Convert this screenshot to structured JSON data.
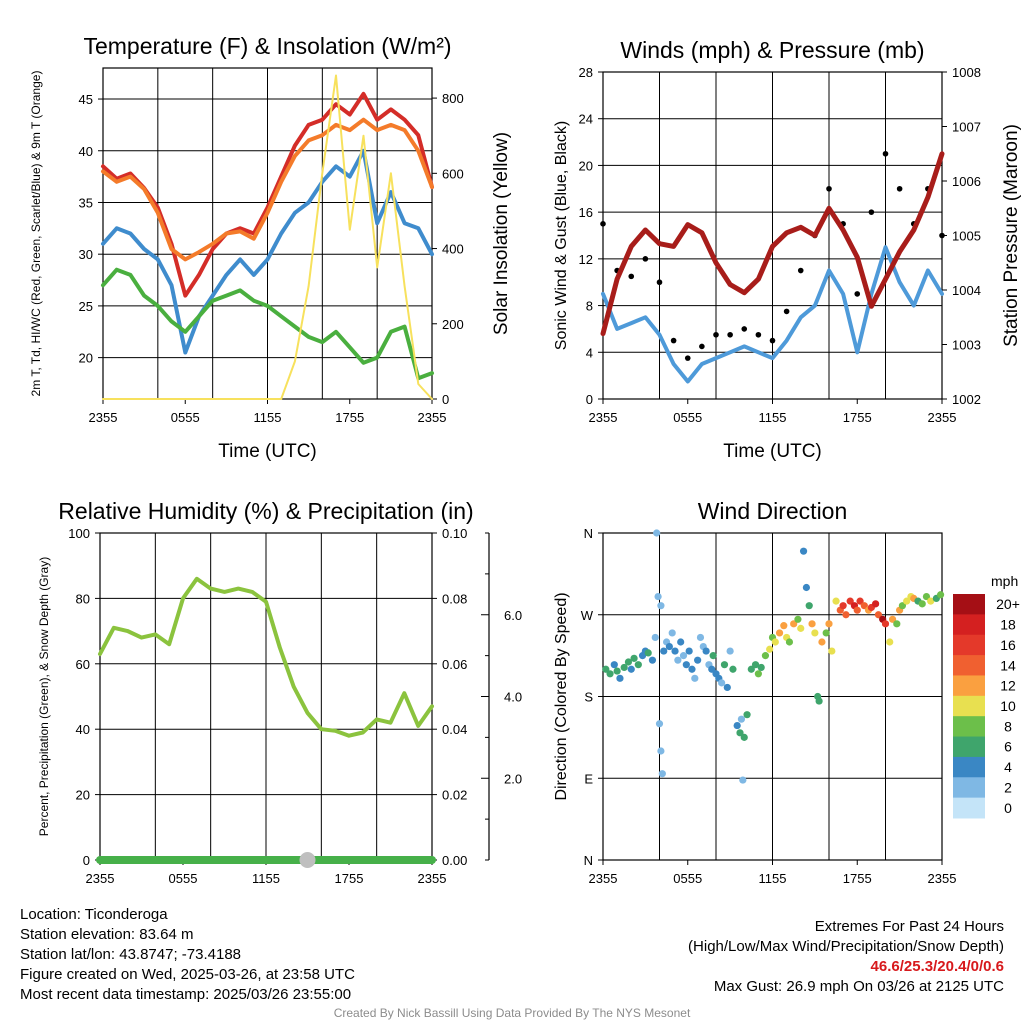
{
  "colors": {
    "temp_red": "#d42d28",
    "temp_orange": "#f47b2a",
    "temp_blue": "#3f8ccd",
    "temp_green": "#4aaf3f",
    "insolation": "#f7e15d",
    "wind": "#4e9ad9",
    "gust": "#000000",
    "pressure": "#a81d1a",
    "rh": "#8bc33e",
    "precip": "#46b049",
    "snow": "#bfbfbf",
    "extremes": "#d7191c",
    "credit": "#8c8c8c"
  },
  "chart_data": [
    {
      "id": "temperature",
      "type": "line",
      "title": "Temperature (F) & Insolation (W/m²)",
      "xlabel": "Time (UTC)",
      "ylabel_left": "2m T, Td, HI/WC (Red, Green, Scarlet/Blue) & 9m T (Orange)",
      "ylabel_right": "Solar Insolation (Yellow)",
      "x_ticks": [
        "2355",
        "0555",
        "1155",
        "1755",
        "2355"
      ],
      "ylim_left": [
        16,
        48
      ],
      "yticks_left": [
        20,
        25,
        30,
        35,
        40,
        45
      ],
      "ylim_right": [
        0,
        880
      ],
      "yticks_right": [
        0,
        200,
        400,
        600,
        800
      ],
      "x_hours": [
        0,
        1,
        2,
        3,
        4,
        5,
        6,
        7,
        8,
        9,
        10,
        11,
        12,
        13,
        14,
        15,
        16,
        17,
        18,
        19,
        20,
        21,
        22,
        23,
        24
      ],
      "series": [
        {
          "name": "Scarlet",
          "color_key": "temp_red",
          "axis": "left",
          "values": [
            38.5,
            37.3,
            37.8,
            36.4,
            34.5,
            31,
            26,
            28,
            30.5,
            32,
            32.5,
            32,
            34.5,
            37.5,
            40.5,
            42.5,
            43,
            44.5,
            43.5,
            45.5,
            43,
            44,
            43,
            41.5,
            36.5
          ]
        },
        {
          "name": "Orange",
          "color_key": "temp_orange",
          "axis": "left",
          "values": [
            38,
            37,
            37.5,
            36.3,
            34,
            30.5,
            29.5,
            30.2,
            31,
            32,
            32.2,
            31.5,
            34,
            37,
            39.5,
            41,
            41.5,
            42.5,
            42,
            43,
            42,
            42.5,
            42,
            40,
            36.5
          ]
        },
        {
          "name": "Blue",
          "color_key": "temp_blue",
          "axis": "left",
          "values": [
            31,
            32.5,
            32,
            30.5,
            29.5,
            27,
            20.5,
            24,
            26,
            28,
            29.5,
            28,
            29.5,
            32,
            34,
            35,
            37,
            38.5,
            37.5,
            40,
            33,
            36,
            33,
            32.5,
            30
          ]
        },
        {
          "name": "Green",
          "color_key": "temp_green",
          "axis": "left",
          "values": [
            27,
            28.5,
            28,
            26,
            25,
            23.5,
            22.5,
            24,
            25.5,
            26,
            26.5,
            25.5,
            25,
            24,
            23,
            22,
            21.5,
            22.5,
            21,
            19.5,
            20,
            22.5,
            23,
            18,
            18.5
          ]
        },
        {
          "name": "Yellow",
          "color_key": "insolation",
          "axis": "right",
          "values": [
            0,
            0,
            0,
            0,
            0,
            0,
            0,
            0,
            0,
            0,
            0,
            0,
            0,
            0,
            100,
            300,
            600,
            860,
            450,
            700,
            350,
            600,
            300,
            40,
            0
          ]
        }
      ]
    },
    {
      "id": "winds",
      "type": "line",
      "title": "Winds (mph) & Pressure (mb)",
      "xlabel": "Time (UTC)",
      "ylabel_left": "Sonic Wind & Gust (Blue, Black)",
      "ylabel_right": "Station Pressure (Maroon)",
      "x_ticks": [
        "2355",
        "0555",
        "1155",
        "1755",
        "2355"
      ],
      "ylim_left": [
        0,
        28
      ],
      "yticks_left": [
        0,
        4,
        8,
        12,
        16,
        20,
        24,
        28
      ],
      "ylim_right": [
        1002,
        1008
      ],
      "yticks_right": [
        1002,
        1003,
        1004,
        1005,
        1006,
        1007,
        1008
      ],
      "x_hours": [
        0,
        1,
        2,
        3,
        4,
        5,
        6,
        7,
        8,
        9,
        10,
        11,
        12,
        13,
        14,
        15,
        16,
        17,
        18,
        19,
        20,
        21,
        22,
        23,
        24
      ],
      "series": [
        {
          "name": "Sonic Wind",
          "color_key": "wind",
          "axis": "left",
          "values": [
            9,
            6,
            6.5,
            7,
            5.5,
            3,
            1.5,
            3,
            3.5,
            4,
            4.5,
            4,
            3.5,
            5,
            7,
            8,
            11,
            9,
            4,
            9,
            13,
            10,
            8,
            11,
            9
          ]
        },
        {
          "name": "Gust",
          "color_key": "gust",
          "axis": "left",
          "values": [
            15,
            11,
            10.5,
            12,
            10,
            5,
            3.5,
            4.5,
            5.5,
            5.5,
            6,
            5.5,
            5,
            7.5,
            11,
            14,
            18,
            15,
            9,
            16,
            21,
            18,
            15,
            18,
            14
          ]
        },
        {
          "name": "Station Pressure",
          "color_key": "pressure",
          "axis": "right",
          "values": [
            1003.2,
            1004.2,
            1004.8,
            1005.1,
            1004.85,
            1004.8,
            1005.2,
            1005.05,
            1004.5,
            1004.1,
            1003.95,
            1004.2,
            1004.8,
            1005.05,
            1005.15,
            1005.0,
            1005.5,
            1005.1,
            1004.6,
            1003.7,
            1004.2,
            1004.7,
            1005.1,
            1005.7,
            1006.5
          ]
        }
      ]
    },
    {
      "id": "humidity",
      "type": "line",
      "title": "Relative Humidity (%) & Precipitation (in)",
      "xlabel": "",
      "ylabel_left": "Percent, Precipitation (Green), & Snow Depth (Gray)",
      "x_ticks": [
        "2355",
        "0555",
        "1155",
        "1755",
        "2355"
      ],
      "ylim_left": [
        0,
        100
      ],
      "yticks_left": [
        0,
        20,
        40,
        60,
        80,
        100
      ],
      "ylim_right": [
        0,
        0.1
      ],
      "yticks_right": [
        0.0,
        0.02,
        0.04,
        0.06,
        0.08,
        0.1
      ],
      "ytick_labels_right": [
        "0.00",
        "0.02",
        "0.04",
        "0.06",
        "0.08",
        "0.10"
      ],
      "ylim_third": [
        0,
        8
      ],
      "yticks_third": [
        2,
        4,
        6
      ],
      "ytick_labels_third": [
        "2.0",
        "4.0",
        "6.0"
      ],
      "x_hours": [
        0,
        1,
        2,
        3,
        4,
        5,
        6,
        7,
        8,
        9,
        10,
        11,
        12,
        13,
        14,
        15,
        16,
        17,
        18,
        19,
        20,
        21,
        22,
        23,
        24
      ],
      "series": [
        {
          "name": "Relative Humidity",
          "color_key": "rh",
          "axis": "left",
          "values": [
            63,
            71,
            70,
            68,
            69,
            66,
            80,
            86,
            83,
            82,
            83,
            82,
            79,
            65,
            53,
            45,
            40,
            39.5,
            38,
            39,
            43,
            42,
            51,
            41,
            47
          ]
        },
        {
          "name": "Precipitation",
          "color_key": "precip",
          "axis": "right",
          "values": [
            0,
            0,
            0,
            0,
            0,
            0,
            0,
            0,
            0,
            0,
            0,
            0,
            0,
            0,
            0,
            0,
            0,
            0,
            0,
            0,
            0,
            0,
            0,
            0,
            0
          ]
        },
        {
          "name": "Snow Depth",
          "color_key": "snow",
          "axis": "third",
          "values": [
            0,
            0,
            0,
            0,
            0,
            0,
            0,
            0,
            0,
            0,
            0,
            0,
            0,
            0,
            0,
            0,
            0,
            0,
            0,
            0,
            0,
            0,
            0,
            0,
            0
          ]
        }
      ]
    },
    {
      "id": "direction",
      "type": "scatter",
      "title": "Wind Direction",
      "xlabel": "",
      "ylabel_left": "Direction (Colored By Speed)",
      "x_ticks": [
        "2355",
        "0555",
        "1155",
        "1755",
        "2355"
      ],
      "ylim_left": [
        0,
        360
      ],
      "yticks_left": [
        0,
        90,
        180,
        270,
        360
      ],
      "ytick_labels_left": [
        "N",
        "E",
        "S",
        "W",
        "N"
      ],
      "colorbar_label": "mph",
      "colorbar_ticks": [
        "20+",
        "18",
        "16",
        "14",
        "12",
        "10",
        "8",
        "6",
        "4",
        "2",
        "0"
      ],
      "colorbar_colors": [
        "#a50f15",
        "#d42020",
        "#e4392a",
        "#f06030",
        "#faa040",
        "#e8e050",
        "#6cbf4a",
        "#3fa56c",
        "#3a87c4",
        "#7fb8e4",
        "#c4e4f8"
      ],
      "points": [
        [
          0.2,
          210,
          6
        ],
        [
          0.5,
          205,
          7
        ],
        [
          0.8,
          215,
          5
        ],
        [
          1.0,
          208,
          6
        ],
        [
          1.2,
          200,
          4
        ],
        [
          1.5,
          212,
          7
        ],
        [
          1.8,
          218,
          6
        ],
        [
          2.0,
          210,
          5
        ],
        [
          2.2,
          222,
          6
        ],
        [
          2.5,
          215,
          7
        ],
        [
          2.8,
          225,
          5
        ],
        [
          3.0,
          230,
          4
        ],
        [
          3.2,
          228,
          6
        ],
        [
          3.5,
          220,
          4
        ],
        [
          3.7,
          245,
          3
        ],
        [
          3.8,
          360,
          3
        ],
        [
          3.9,
          290,
          2
        ],
        [
          4.0,
          150,
          3
        ],
        [
          4.1,
          120,
          2
        ],
        [
          4.2,
          95,
          3
        ],
        [
          4.1,
          280,
          2
        ],
        [
          4.3,
          230,
          4
        ],
        [
          4.5,
          240,
          3
        ],
        [
          4.7,
          235,
          4
        ],
        [
          4.9,
          250,
          3
        ],
        [
          5.1,
          230,
          4
        ],
        [
          5.3,
          220,
          3
        ],
        [
          5.5,
          240,
          4
        ],
        [
          5.7,
          225,
          3
        ],
        [
          5.9,
          215,
          4
        ],
        [
          6.1,
          230,
          5
        ],
        [
          6.3,
          210,
          4
        ],
        [
          6.5,
          200,
          3
        ],
        [
          6.7,
          220,
          4
        ],
        [
          6.9,
          245,
          2
        ],
        [
          7.1,
          235,
          3
        ],
        [
          7.3,
          230,
          4
        ],
        [
          7.5,
          215,
          2
        ],
        [
          7.7,
          210,
          5
        ],
        [
          7.8,
          225,
          6
        ],
        [
          8.0,
          205,
          4
        ],
        [
          8.2,
          200,
          5
        ],
        [
          8.4,
          195,
          3
        ],
        [
          8.6,
          215,
          6
        ],
        [
          8.8,
          190,
          4
        ],
        [
          9.0,
          230,
          3
        ],
        [
          9.2,
          210,
          7
        ],
        [
          9.5,
          148,
          4
        ],
        [
          9.7,
          140,
          6
        ],
        [
          9.8,
          155,
          2
        ],
        [
          9.9,
          88,
          3
        ],
        [
          10.0,
          135,
          6
        ],
        [
          10.2,
          160,
          7
        ],
        [
          10.5,
          210,
          6
        ],
        [
          10.8,
          215,
          7
        ],
        [
          11.0,
          205,
          8
        ],
        [
          11.2,
          212,
          6
        ],
        [
          11.5,
          225,
          9
        ],
        [
          11.8,
          232,
          11
        ],
        [
          12.0,
          245,
          8
        ],
        [
          12.2,
          240,
          10
        ],
        [
          12.5,
          250,
          12
        ],
        [
          12.8,
          258,
          13
        ],
        [
          13.0,
          245,
          11
        ],
        [
          13.2,
          240,
          9
        ],
        [
          13.5,
          260,
          12
        ],
        [
          13.8,
          265,
          8
        ],
        [
          14.0,
          255,
          10
        ],
        [
          14.2,
          340,
          4
        ],
        [
          14.4,
          300,
          4
        ],
        [
          14.6,
          280,
          6
        ],
        [
          14.8,
          260,
          12
        ],
        [
          15.0,
          250,
          10
        ],
        [
          15.2,
          180,
          6
        ],
        [
          15.3,
          175,
          7
        ],
        [
          15.5,
          240,
          12
        ],
        [
          15.8,
          250,
          9
        ],
        [
          16.0,
          260,
          13
        ],
        [
          16.2,
          230,
          10
        ],
        [
          16.5,
          285,
          11
        ],
        [
          16.8,
          275,
          14
        ],
        [
          17.0,
          280,
          16
        ],
        [
          17.2,
          270,
          15
        ],
        [
          17.5,
          285,
          17
        ],
        [
          17.8,
          280,
          18
        ],
        [
          18.0,
          275,
          14
        ],
        [
          18.2,
          285,
          16
        ],
        [
          18.5,
          280,
          15
        ],
        [
          18.8,
          275,
          13
        ],
        [
          19.0,
          278,
          17
        ],
        [
          19.3,
          282,
          18
        ],
        [
          19.5,
          270,
          14
        ],
        [
          19.8,
          265,
          20
        ],
        [
          20.0,
          260,
          16
        ],
        [
          20.3,
          240,
          10
        ],
        [
          20.5,
          265,
          12
        ],
        [
          20.8,
          260,
          9
        ],
        [
          21.0,
          275,
          13
        ],
        [
          21.2,
          280,
          8
        ],
        [
          21.5,
          285,
          11
        ],
        [
          21.8,
          290,
          10
        ],
        [
          22.0,
          288,
          12
        ],
        [
          22.3,
          285,
          7
        ],
        [
          22.6,
          282,
          9
        ],
        [
          22.9,
          290,
          8
        ],
        [
          23.2,
          285,
          10
        ],
        [
          23.6,
          288,
          7
        ],
        [
          23.9,
          292,
          8
        ]
      ]
    }
  ],
  "info": {
    "location": "Location: Ticonderoga",
    "elevation": "Station elevation: 83.64 m",
    "latlon": "Station lat/lon: 43.8747; -73.4188",
    "created": "Figure created on Wed, 2025-03-26, at 23:58 UTC",
    "recent": "Most recent data timestamp: 2025/03/26 23:55:00"
  },
  "extremes": {
    "heading": "Extremes For Past 24 Hours",
    "subheading": "(High/Low/Max Wind/Precipitation/Snow Depth)",
    "values": "46.6/25.3/20.4/0/0.6",
    "gust": "Max Gust: 26.9 mph On 03/26 at 2125 UTC"
  },
  "credit": "Created By Nick Bassill Using Data Provided By The NYS Mesonet"
}
